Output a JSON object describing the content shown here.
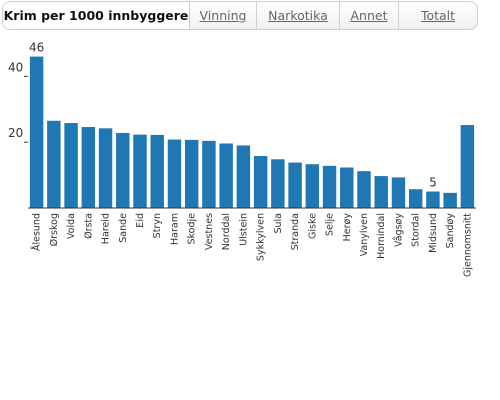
{
  "tabs": [
    {
      "label": "Krim per 1000 innbyggere",
      "active": true
    },
    {
      "label": "Vinning",
      "active": false
    },
    {
      "label": "Narkotika",
      "active": false
    },
    {
      "label": "Annet",
      "active": false
    },
    {
      "label": "Totalt",
      "active": false
    }
  ],
  "colors": {
    "bar": "#1f77b4",
    "axis": "#333333",
    "tab_text": "#666666"
  },
  "chart_data": {
    "type": "bar",
    "title": "",
    "xlabel": "",
    "ylabel": "",
    "ylim": [
      0,
      48
    ],
    "yticks": [
      20,
      40
    ],
    "grid": false,
    "categories": [
      "Ålesund",
      "Ørskog",
      "Volda",
      "Ørsta",
      "Hareid",
      "Sande",
      "Eid",
      "Stryn",
      "Haram",
      "Skodje",
      "Vestnes",
      "Norddal",
      "Ulstein",
      "Sykkylven",
      "Sula",
      "Stranda",
      "Giske",
      "Selje",
      "Herøy",
      "Vanylven",
      "Hornindal",
      "Vågsøy",
      "Stordal",
      "Midsund",
      "Sandøy",
      "Gjennomsnitt"
    ],
    "values": [
      46,
      26.5,
      25.8,
      24.6,
      24.2,
      22.8,
      22.3,
      22.2,
      20.8,
      20.7,
      20.4,
      19.6,
      19.0,
      15.8,
      14.8,
      13.8,
      13.3,
      12.8,
      12.3,
      11.2,
      9.7,
      9.3,
      5.7,
      5,
      4.6,
      25.2
    ],
    "data_labels": [
      {
        "index": 0,
        "text": "46"
      },
      {
        "index": 23,
        "text": "5"
      }
    ]
  }
}
